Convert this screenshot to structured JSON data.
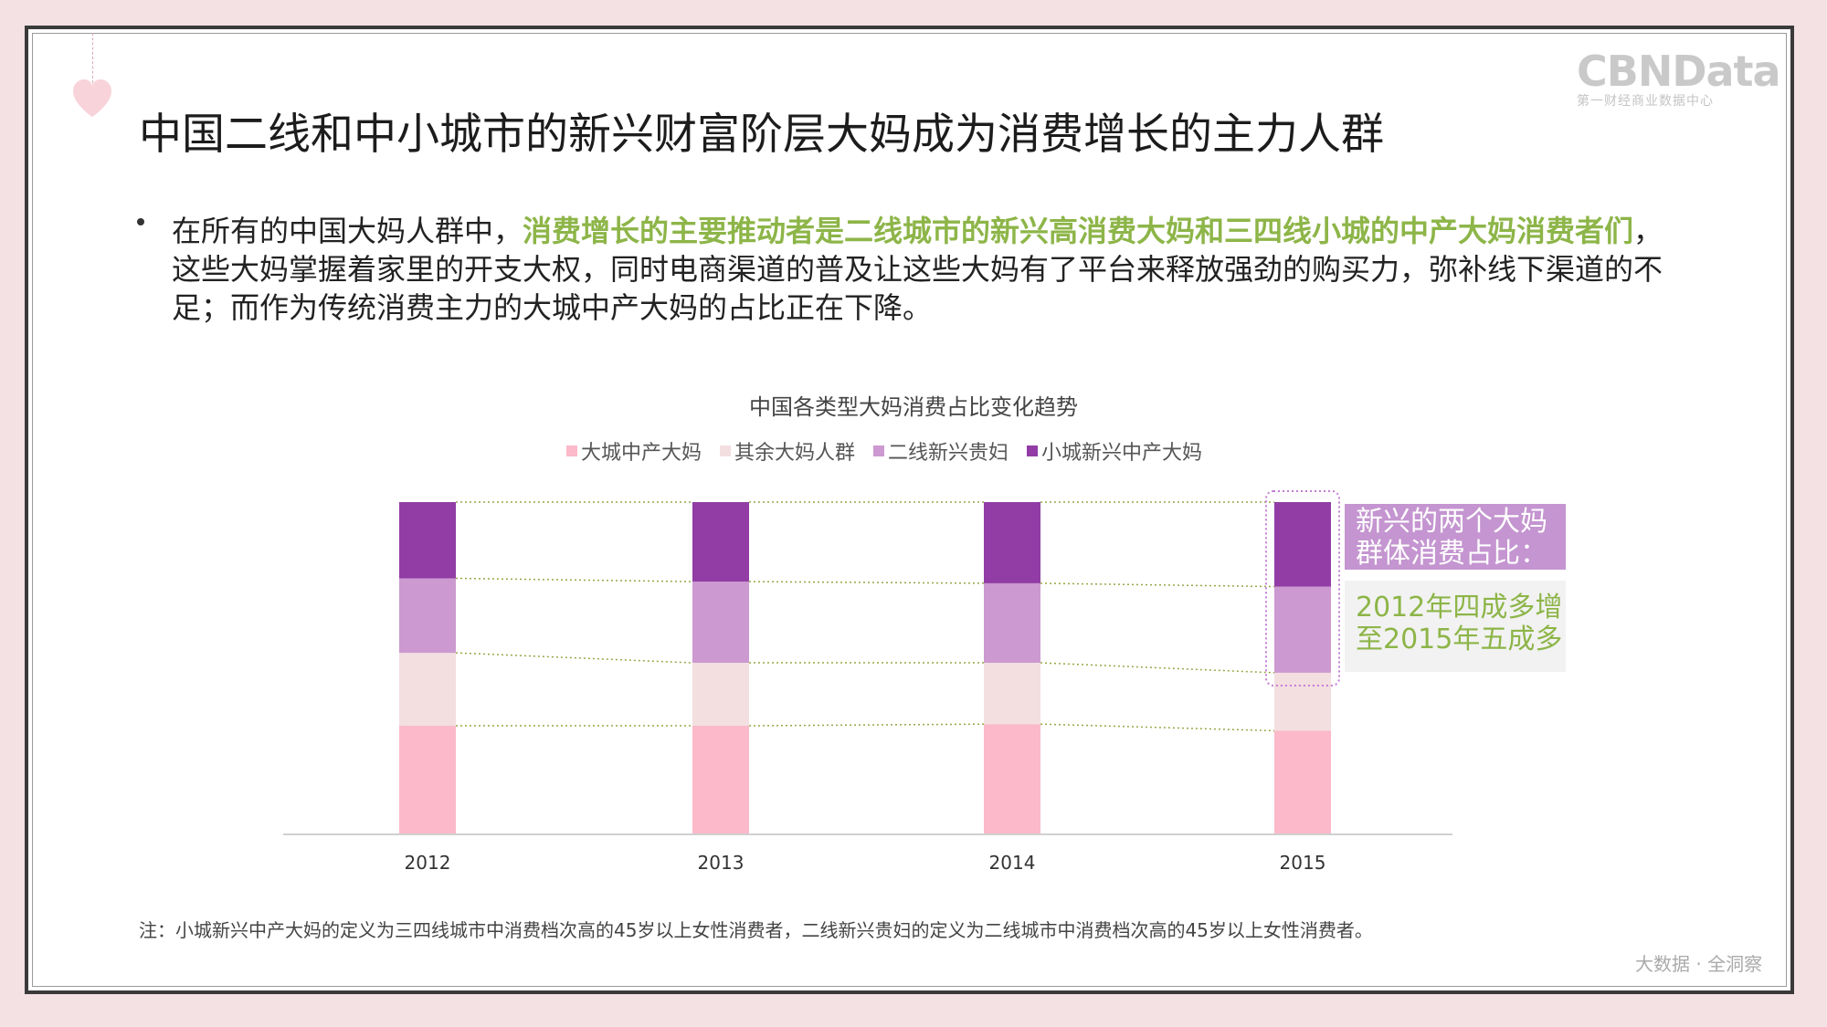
{
  "logo": {
    "main": "CBNData",
    "sub": "第一财经商业数据中心"
  },
  "title": "中国二线和中小城市的新兴财富阶层大妈成为消费增长的主力人群",
  "bullet": {
    "part1": "在所有的中国大妈人群中，",
    "highlight": "消费增长的主要推动者是二线城市的新兴高消费大妈和三四线小城的中产大妈消费者们",
    "part2": "，这些大妈掌握着家里的开支大权，同时电商渠道的普及让这些大妈有了平台来释放强劲的购买力，弥补线下渠道的不足；而作为传统消费主力的大城中产大妈的占比正在下降。"
  },
  "chart_data": {
    "type": "bar",
    "stacked": true,
    "percent": true,
    "title": "中国各类型大妈消费占比变化趋势",
    "categories": [
      "2012",
      "2013",
      "2014",
      "2015"
    ],
    "series": [
      {
        "name": "大城中产大妈",
        "color": "#fbb9c9",
        "values": [
          0.325,
          0.325,
          0.33,
          0.31
        ]
      },
      {
        "name": "其余大妈人群",
        "color": "#f3dfe0",
        "values": [
          0.22,
          0.19,
          0.185,
          0.175
        ]
      },
      {
        "name": "二线新兴贵妇",
        "color": "#cc99d0",
        "values": [
          0.225,
          0.245,
          0.24,
          0.26
        ]
      },
      {
        "name": "小城新兴中产大妈",
        "color": "#913da5",
        "values": [
          0.23,
          0.24,
          0.245,
          0.255
        ]
      }
    ],
    "ylim": [
      0,
      1
    ],
    "legend_position": "top",
    "connector_color": "#94a845",
    "highlight_category": "2015"
  },
  "callout": {
    "top": "新兴的两个大妈群体消费占比：",
    "bottom": "2012年四成多增至2015年五成多"
  },
  "note": "注：小城新兴中产大妈的定义为三四线城市中消费档次高的45岁以上女性消费者，二线新兴贵妇的定义为二线城市中消费档次高的45岁以上女性消费者。",
  "footer": "大数据 · 全洞察"
}
